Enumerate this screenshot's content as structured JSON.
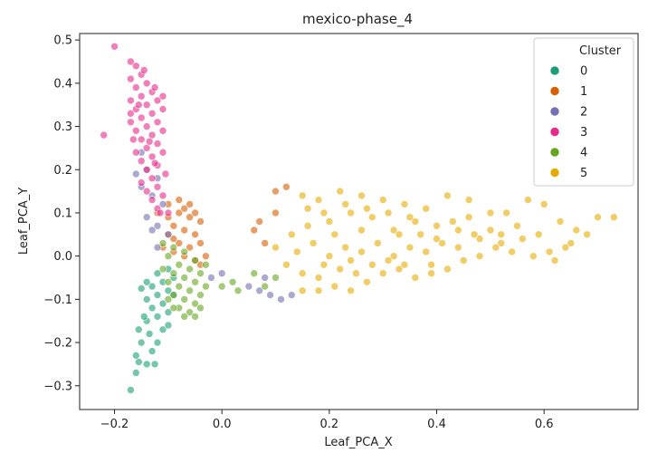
{
  "chart_data": {
    "type": "scatter",
    "title": "mexico-phase_4",
    "xlabel": "Leaf_PCA_X",
    "ylabel": "Leaf_PCA_Y",
    "xlim": [
      -0.265,
      0.775
    ],
    "ylim": [
      -0.355,
      0.515
    ],
    "xticks": [
      -0.2,
      0.0,
      0.2,
      0.4,
      0.6
    ],
    "xtick_labels": [
      "−0.2",
      "0.0",
      "0.2",
      "0.4",
      "0.6"
    ],
    "yticks": [
      -0.3,
      -0.2,
      -0.1,
      0.0,
      0.1,
      0.2,
      0.3,
      0.4,
      0.5
    ],
    "ytick_labels": [
      "−0.3",
      "−0.2",
      "−0.1",
      "0.0",
      "0.1",
      "0.2",
      "0.3",
      "0.4",
      "0.5"
    ],
    "grid": false,
    "legend": {
      "title": "Cluster",
      "placement": "top-right"
    },
    "marker_alpha": 0.6,
    "series": [
      {
        "name": "0",
        "color": "#1b9e77",
        "points": [
          [
            -0.17,
            -0.31
          ],
          [
            -0.16,
            -0.27
          ],
          [
            -0.155,
            -0.245
          ],
          [
            -0.14,
            -0.25
          ],
          [
            -0.13,
            -0.22
          ],
          [
            -0.15,
            -0.2
          ],
          [
            -0.12,
            -0.2
          ],
          [
            -0.135,
            -0.18
          ],
          [
            -0.11,
            -0.17
          ],
          [
            -0.14,
            -0.15
          ],
          [
            -0.12,
            -0.14
          ],
          [
            -0.1,
            -0.13
          ],
          [
            -0.13,
            -0.12
          ],
          [
            -0.11,
            -0.11
          ],
          [
            -0.14,
            -0.1
          ],
          [
            -0.12,
            -0.09
          ],
          [
            -0.1,
            -0.08
          ],
          [
            -0.13,
            -0.07
          ],
          [
            -0.11,
            -0.06
          ],
          [
            -0.09,
            -0.05
          ],
          [
            -0.12,
            -0.04
          ],
          [
            -0.1,
            -0.03
          ],
          [
            -0.14,
            -0.06
          ],
          [
            -0.145,
            -0.14
          ],
          [
            -0.1,
            -0.16
          ],
          [
            -0.125,
            -0.25
          ],
          [
            -0.16,
            -0.23
          ],
          [
            -0.155,
            -0.17
          ],
          [
            -0.09,
            -0.09
          ],
          [
            -0.15,
            -0.075
          ]
        ]
      },
      {
        "name": "1",
        "color": "#d95f02",
        "points": [
          [
            -0.1,
            0.12
          ],
          [
            -0.08,
            0.1
          ],
          [
            -0.06,
            0.09
          ],
          [
            -0.09,
            0.07
          ],
          [
            -0.07,
            0.06
          ],
          [
            -0.05,
            0.05
          ],
          [
            -0.1,
            0.05
          ],
          [
            -0.08,
            0.03
          ],
          [
            -0.06,
            0.02
          ],
          [
            -0.04,
            0.03
          ],
          [
            -0.09,
            0.01
          ],
          [
            -0.07,
            0.0
          ],
          [
            -0.05,
            -0.01
          ],
          [
            -0.11,
            0.02
          ],
          [
            -0.04,
            0.08
          ],
          [
            -0.06,
            0.12
          ],
          [
            -0.08,
            0.13
          ],
          [
            -0.05,
            0.1
          ],
          [
            -0.1,
            0.09
          ],
          [
            -0.03,
            0.0
          ],
          [
            0.07,
            0.08
          ],
          [
            0.1,
            0.15
          ],
          [
            0.12,
            0.16
          ],
          [
            0.06,
            0.06
          ],
          [
            0.08,
            0.03
          ],
          [
            0.1,
            0.1
          ],
          [
            -0.12,
            0.1
          ],
          [
            -0.07,
            0.11
          ],
          [
            -0.04,
            -0.02
          ],
          [
            -0.09,
            0.04
          ]
        ]
      },
      {
        "name": "2",
        "color": "#7570b3",
        "points": [
          [
            -0.15,
            0.24
          ],
          [
            -0.14,
            0.2
          ],
          [
            -0.12,
            0.18
          ],
          [
            -0.15,
            0.16
          ],
          [
            -0.13,
            0.14
          ],
          [
            -0.11,
            0.12
          ],
          [
            -0.14,
            0.09
          ],
          [
            -0.12,
            0.07
          ],
          [
            -0.1,
            0.05
          ],
          [
            -0.13,
            0.06
          ],
          [
            -0.02,
            -0.05
          ],
          [
            0.0,
            -0.04
          ],
          [
            0.07,
            -0.08
          ],
          [
            0.09,
            -0.09
          ],
          [
            0.11,
            -0.1
          ],
          [
            0.13,
            -0.09
          ],
          [
            0.08,
            -0.05
          ],
          [
            -0.12,
            0.02
          ],
          [
            -0.16,
            0.19
          ],
          [
            0.05,
            -0.07
          ]
        ]
      },
      {
        "name": "3",
        "color": "#e7298a",
        "points": [
          [
            -0.2,
            0.485
          ],
          [
            -0.22,
            0.28
          ],
          [
            -0.17,
            0.45
          ],
          [
            -0.16,
            0.44
          ],
          [
            -0.15,
            0.42
          ],
          [
            -0.17,
            0.41
          ],
          [
            -0.14,
            0.4
          ],
          [
            -0.16,
            0.39
          ],
          [
            -0.13,
            0.38
          ],
          [
            -0.15,
            0.37
          ],
          [
            -0.17,
            0.36
          ],
          [
            -0.12,
            0.36
          ],
          [
            -0.14,
            0.35
          ],
          [
            -0.16,
            0.34
          ],
          [
            -0.13,
            0.33
          ],
          [
            -0.11,
            0.34
          ],
          [
            -0.15,
            0.32
          ],
          [
            -0.17,
            0.31
          ],
          [
            -0.12,
            0.31
          ],
          [
            -0.14,
            0.3
          ],
          [
            -0.16,
            0.29
          ],
          [
            -0.13,
            0.28
          ],
          [
            -0.11,
            0.29
          ],
          [
            -0.15,
            0.27
          ],
          [
            -0.12,
            0.26
          ],
          [
            -0.14,
            0.25
          ],
          [
            -0.16,
            0.24
          ],
          [
            -0.13,
            0.23
          ],
          [
            -0.11,
            0.24
          ],
          [
            -0.15,
            0.22
          ],
          [
            -0.12,
            0.21
          ],
          [
            -0.14,
            0.2
          ],
          [
            -0.13,
            0.18
          ],
          [
            -0.15,
            0.17
          ],
          [
            -0.12,
            0.16
          ],
          [
            -0.14,
            0.15
          ],
          [
            -0.11,
            0.14
          ],
          [
            -0.13,
            0.13
          ],
          [
            -0.12,
            0.11
          ],
          [
            -0.1,
            0.1
          ],
          [
            -0.17,
            0.33
          ],
          [
            -0.165,
            0.27
          ],
          [
            -0.145,
            0.43
          ],
          [
            -0.155,
            0.35
          ],
          [
            -0.125,
            0.39
          ],
          [
            -0.11,
            0.37
          ],
          [
            -0.135,
            0.265
          ],
          [
            -0.125,
            0.215
          ],
          [
            -0.105,
            0.19
          ],
          [
            -0.115,
            0.1
          ]
        ]
      },
      {
        "name": "4",
        "color": "#66a61e",
        "points": [
          [
            -0.11,
            0.03
          ],
          [
            -0.09,
            0.02
          ],
          [
            -0.07,
            0.01
          ],
          [
            -0.05,
            -0.01
          ],
          [
            -0.1,
            0.0
          ],
          [
            -0.08,
            -0.02
          ],
          [
            -0.06,
            -0.03
          ],
          [
            -0.04,
            -0.04
          ],
          [
            -0.09,
            -0.04
          ],
          [
            -0.07,
            -0.05
          ],
          [
            -0.05,
            -0.06
          ],
          [
            -0.08,
            -0.07
          ],
          [
            -0.06,
            -0.08
          ],
          [
            -0.04,
            -0.09
          ],
          [
            -0.09,
            -0.09
          ],
          [
            -0.07,
            -0.1
          ],
          [
            -0.05,
            -0.11
          ],
          [
            -0.08,
            -0.12
          ],
          [
            -0.06,
            -0.13
          ],
          [
            -0.04,
            -0.12
          ],
          [
            -0.1,
            -0.06
          ],
          [
            -0.11,
            -0.03
          ],
          [
            -0.03,
            -0.07
          ],
          [
            -0.07,
            -0.14
          ],
          [
            -0.09,
            -0.12
          ],
          [
            0.0,
            -0.07
          ],
          [
            0.03,
            -0.08
          ],
          [
            0.06,
            -0.04
          ],
          [
            0.08,
            -0.07
          ],
          [
            0.1,
            -0.05
          ],
          [
            -0.05,
            -0.14
          ],
          [
            -0.03,
            -0.02
          ],
          [
            0.02,
            -0.06
          ],
          [
            -0.1,
            -0.1
          ]
        ]
      },
      {
        "name": "5",
        "color": "#e6ab02",
        "points": [
          [
            0.15,
            0.14
          ],
          [
            0.18,
            0.13
          ],
          [
            0.22,
            0.15
          ],
          [
            0.26,
            0.14
          ],
          [
            0.3,
            0.13
          ],
          [
            0.34,
            0.12
          ],
          [
            0.38,
            0.11
          ],
          [
            0.42,
            0.14
          ],
          [
            0.46,
            0.13
          ],
          [
            0.5,
            0.1
          ],
          [
            0.53,
            0.1
          ],
          [
            0.57,
            0.13
          ],
          [
            0.6,
            0.12
          ],
          [
            0.63,
            0.08
          ],
          [
            0.66,
            0.06
          ],
          [
            0.7,
            0.09
          ],
          [
            0.73,
            0.09
          ],
          [
            0.64,
            0.02
          ],
          [
            0.65,
            0.03
          ],
          [
            0.61,
            0.01
          ],
          [
            0.56,
            0.04
          ],
          [
            0.52,
            0.03
          ],
          [
            0.48,
            0.04
          ],
          [
            0.44,
            0.06
          ],
          [
            0.4,
            0.07
          ],
          [
            0.36,
            0.08
          ],
          [
            0.32,
            0.06
          ],
          [
            0.28,
            0.09
          ],
          [
            0.24,
            0.1
          ],
          [
            0.2,
            0.08
          ],
          [
            0.16,
            0.07
          ],
          [
            0.13,
            0.05
          ],
          [
            0.1,
            0.02
          ],
          [
            0.12,
            -0.02
          ],
          [
            0.15,
            -0.04
          ],
          [
            0.18,
            -0.05
          ],
          [
            0.21,
            -0.07
          ],
          [
            0.24,
            -0.08
          ],
          [
            0.27,
            -0.06
          ],
          [
            0.3,
            -0.04
          ],
          [
            0.33,
            -0.03
          ],
          [
            0.36,
            -0.05
          ],
          [
            0.39,
            -0.02
          ],
          [
            0.42,
            -0.03
          ],
          [
            0.45,
            -0.01
          ],
          [
            0.48,
            0.0
          ],
          [
            0.51,
            0.02
          ],
          [
            0.54,
            0.01
          ],
          [
            0.58,
            0.0
          ],
          [
            0.62,
            -0.01
          ],
          [
            0.2,
            0.0
          ],
          [
            0.23,
            0.02
          ],
          [
            0.26,
            0.01
          ],
          [
            0.29,
            0.03
          ],
          [
            0.32,
            0.0
          ],
          [
            0.35,
            0.02
          ],
          [
            0.38,
            0.01
          ],
          [
            0.41,
            0.03
          ],
          [
            0.44,
            0.02
          ],
          [
            0.47,
            0.05
          ],
          [
            0.17,
            0.03
          ],
          [
            0.14,
            0.01
          ],
          [
            0.19,
            -0.02
          ],
          [
            0.22,
            -0.03
          ],
          [
            0.25,
            -0.04
          ],
          [
            0.28,
            -0.02
          ],
          [
            0.31,
            -0.01
          ],
          [
            0.34,
            -0.02
          ],
          [
            0.37,
            0.05
          ],
          [
            0.4,
            0.04
          ],
          [
            0.43,
            0.08
          ],
          [
            0.46,
            0.09
          ],
          [
            0.5,
            0.06
          ],
          [
            0.55,
            0.07
          ],
          [
            0.59,
            0.05
          ],
          [
            0.16,
            0.11
          ],
          [
            0.19,
            0.1
          ],
          [
            0.23,
            0.12
          ],
          [
            0.27,
            0.11
          ],
          [
            0.31,
            0.1
          ],
          [
            0.35,
            0.09
          ],
          [
            0.24,
            -0.01
          ],
          [
            0.21,
            0.05
          ],
          [
            0.18,
            -0.08
          ],
          [
            0.15,
            -0.08
          ],
          [
            0.26,
            0.06
          ],
          [
            0.33,
            0.05
          ],
          [
            0.39,
            -0.04
          ],
          [
            0.52,
            0.05
          ],
          [
            0.68,
            0.05
          ]
        ]
      }
    ]
  }
}
